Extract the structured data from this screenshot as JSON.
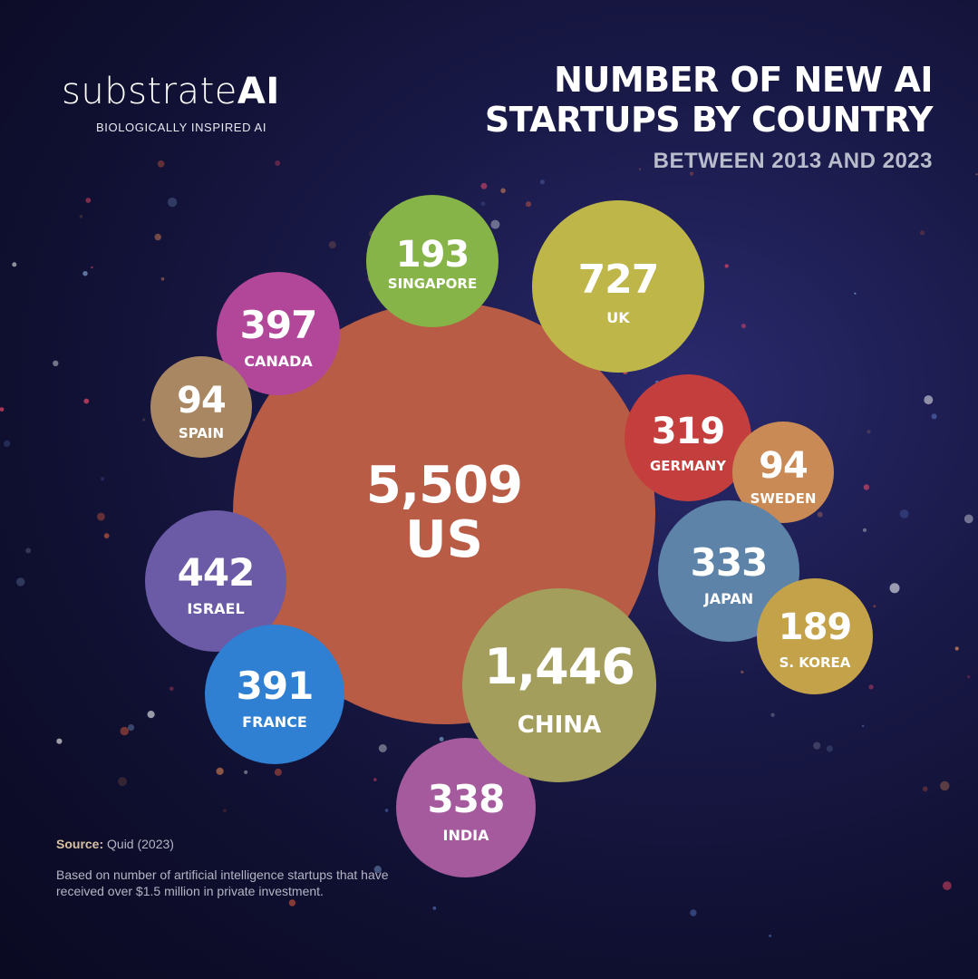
{
  "brand": {
    "name_main": "substrate",
    "name_ai": "AI",
    "tagline": "BIOLOGICALLY INSPIRED AI"
  },
  "title_line1": "NUMBER OF NEW AI",
  "title_line2": "STARTUPS BY COUNTRY",
  "subtitle": "BETWEEN 2013 AND 2023",
  "source": {
    "label": "Source:",
    "value": "Quid (2023)"
  },
  "description": "Based on number of artificial intelligence startups that have received over $1.5 million in private investment.",
  "colors": {
    "background": "#141440",
    "text": "#ffffff"
  },
  "chart_data": {
    "type": "bubble",
    "title": "NUMBER OF NEW AI STARTUPS BY COUNTRY",
    "subtitle": "BETWEEN 2013 AND 2023",
    "categories": [
      "US",
      "China",
      "UK",
      "Israel",
      "Canada",
      "France",
      "India",
      "Japan",
      "Germany",
      "Singapore",
      "S. Korea",
      "Spain",
      "Sweden"
    ],
    "values": [
      5509,
      1446,
      727,
      442,
      397,
      391,
      338,
      333,
      319,
      193,
      189,
      94,
      94
    ],
    "items": [
      {
        "country": "US",
        "label": "US",
        "value": 5509,
        "value_label": "5,509",
        "color": "#b85c45"
      },
      {
        "country": "China",
        "label": "CHINA",
        "value": 1446,
        "value_label": "1,446",
        "color": "#a39e5c"
      },
      {
        "country": "UK",
        "label": "UK",
        "value": 727,
        "value_label": "727",
        "color": "#bfb64a"
      },
      {
        "country": "Israel",
        "label": "ISRAEL",
        "value": 442,
        "value_label": "442",
        "color": "#6b5aa6"
      },
      {
        "country": "Canada",
        "label": "CANADA",
        "value": 397,
        "value_label": "397",
        "color": "#b2479a"
      },
      {
        "country": "France",
        "label": "FRANCE",
        "value": 391,
        "value_label": "391",
        "color": "#2f7fd2"
      },
      {
        "country": "India",
        "label": "INDIA",
        "value": 338,
        "value_label": "338",
        "color": "#a55a9e"
      },
      {
        "country": "Japan",
        "label": "JAPAN",
        "value": 333,
        "value_label": "333",
        "color": "#5d83a8"
      },
      {
        "country": "Germany",
        "label": "GERMANY",
        "value": 319,
        "value_label": "319",
        "color": "#c53e3e"
      },
      {
        "country": "Singapore",
        "label": "SINGAPORE",
        "value": 193,
        "value_label": "193",
        "color": "#86b448"
      },
      {
        "country": "S. Korea",
        "label": "S. KOREA",
        "value": 189,
        "value_label": "189",
        "color": "#c4a24a"
      },
      {
        "country": "Spain",
        "label": "SPAIN",
        "value": 94,
        "value_label": "94",
        "color": "#a88762"
      },
      {
        "country": "Sweden",
        "label": "SWEDEN",
        "value": 94,
        "value_label": "94",
        "color": "#c98a55"
      }
    ]
  }
}
